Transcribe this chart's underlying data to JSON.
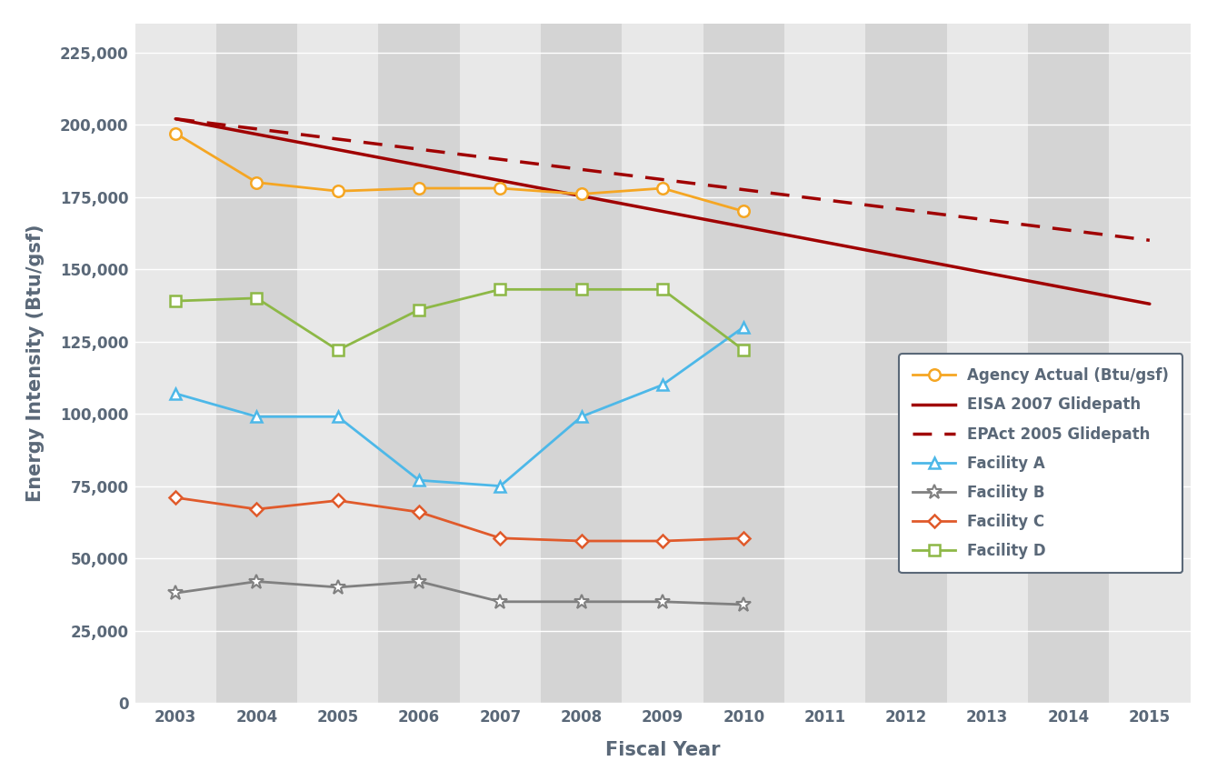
{
  "title": "",
  "xlabel": "Fiscal Year",
  "ylabel": "Energy Intensity (Btu/gsf)",
  "xlim": [
    2002.5,
    2015.5
  ],
  "ylim": [
    0,
    235000
  ],
  "yticks": [
    0,
    25000,
    50000,
    75000,
    100000,
    125000,
    150000,
    175000,
    200000,
    225000
  ],
  "ytick_labels": [
    "0",
    "25,000",
    "50,000",
    "75,000",
    "100,000",
    "125,000",
    "150,000",
    "175,000",
    "200,000",
    "225,000"
  ],
  "xticks": [
    2003,
    2004,
    2005,
    2006,
    2007,
    2008,
    2009,
    2010,
    2011,
    2012,
    2013,
    2014,
    2015
  ],
  "background_color": "#ffffff",
  "plot_bg_color": "#ffffff",
  "stripe_light": "#e8e8e8",
  "stripe_dark": "#d4d4d4",
  "stripe_light_years": [
    2003,
    2005,
    2007,
    2009,
    2011,
    2013,
    2015
  ],
  "stripe_dark_years": [
    2004,
    2006,
    2008,
    2010,
    2012,
    2014
  ],
  "agency_actual": {
    "x": [
      2003,
      2004,
      2005,
      2006,
      2007,
      2008,
      2009,
      2010
    ],
    "y": [
      197000,
      180000,
      177000,
      178000,
      178000,
      176000,
      178000,
      170000
    ],
    "color": "#f5a623",
    "marker": "o",
    "marker_size": 9,
    "linewidth": 2,
    "label": "Agency Actual (Btu/gsf)"
  },
  "eisa_2007": {
    "x": [
      2003,
      2015
    ],
    "y": [
      202000,
      138000
    ],
    "color": "#a00000",
    "linewidth": 2.5,
    "label": "EISA 2007 Glidepath"
  },
  "epact_2005": {
    "x": [
      2003,
      2015
    ],
    "y": [
      202000,
      160000
    ],
    "color": "#a00000",
    "linewidth": 2.5,
    "linestyle": "--",
    "label": "EPAct 2005 Glidepath"
  },
  "facility_a": {
    "x": [
      2003,
      2004,
      2005,
      2006,
      2007,
      2008,
      2009,
      2010
    ],
    "y": [
      107000,
      99000,
      99000,
      77000,
      75000,
      99000,
      110000,
      130000
    ],
    "color": "#4db8e8",
    "marker": "^",
    "marker_size": 9,
    "linewidth": 2,
    "label": "Facility A"
  },
  "facility_b": {
    "x": [
      2003,
      2004,
      2005,
      2006,
      2007,
      2008,
      2009,
      2010
    ],
    "y": [
      38000,
      42000,
      40000,
      42000,
      35000,
      35000,
      35000,
      34000
    ],
    "color": "#808080",
    "marker": "*",
    "marker_size": 12,
    "linewidth": 2,
    "label": "Facility B"
  },
  "facility_c": {
    "x": [
      2003,
      2004,
      2005,
      2006,
      2007,
      2008,
      2009,
      2010
    ],
    "y": [
      71000,
      67000,
      70000,
      66000,
      57000,
      56000,
      56000,
      57000
    ],
    "color": "#e05a2b",
    "marker": "D",
    "marker_size": 7,
    "linewidth": 2,
    "label": "Facility C"
  },
  "facility_d": {
    "x": [
      2003,
      2004,
      2005,
      2006,
      2007,
      2008,
      2009,
      2010
    ],
    "y": [
      139000,
      140000,
      122000,
      136000,
      143000,
      143000,
      143000,
      122000
    ],
    "color": "#8db846",
    "marker": "s",
    "marker_size": 9,
    "linewidth": 2,
    "label": "Facility D"
  },
  "legend_edge_color": "#5a6878",
  "legend_text_color": "#5a6878",
  "axis_label_fontsize": 14,
  "tick_fontsize": 12,
  "tick_color": "#5a6878"
}
